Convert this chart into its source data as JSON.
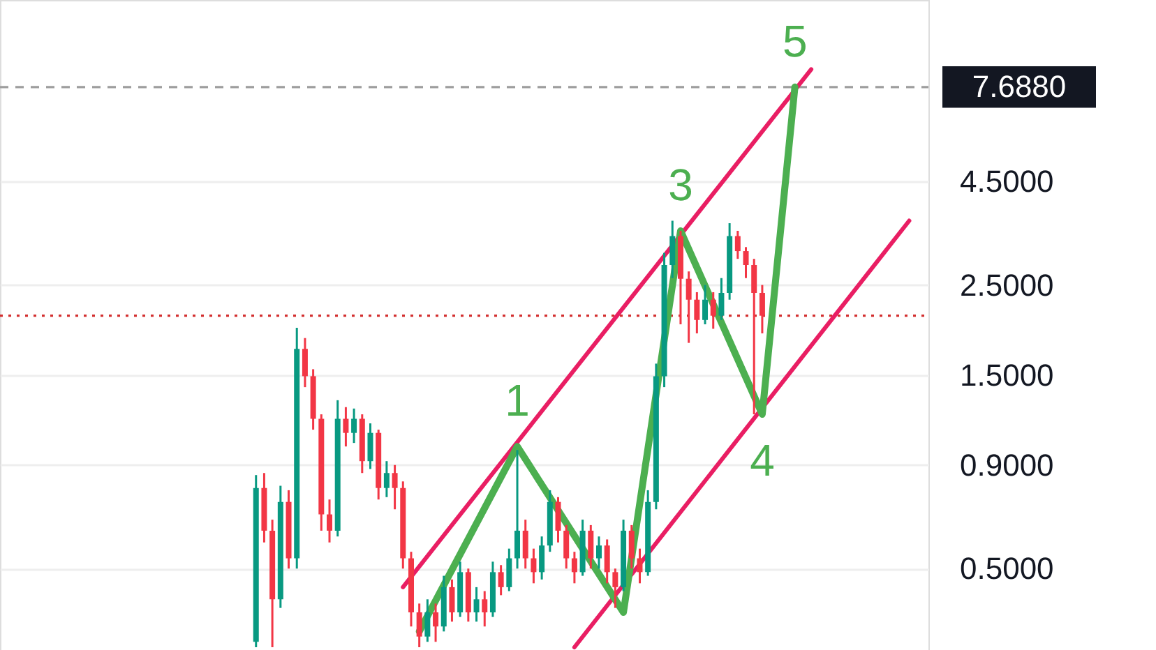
{
  "chart_data": {
    "type": "candlestick",
    "categories": [
      null,
      null,
      null,
      null,
      null,
      null,
      null,
      null,
      null,
      null,
      null,
      null,
      null,
      null,
      null,
      null,
      null,
      null,
      null,
      null,
      null,
      null,
      null,
      null,
      null,
      null,
      null,
      null,
      null,
      null,
      null,
      null,
      null,
      null,
      null,
      null,
      null,
      null,
      null,
      null,
      null,
      null,
      null,
      null,
      null,
      null,
      null,
      null,
      null,
      null,
      null,
      null,
      null,
      null,
      null,
      null,
      null,
      null,
      null,
      null,
      null,
      null,
      null,
      null,
      null,
      null,
      null,
      null,
      null,
      null,
      null,
      null,
      null,
      null,
      null,
      null,
      null,
      null,
      null,
      null,
      null,
      null,
      null,
      null,
      null,
      null,
      null,
      null,
      null,
      null,
      null,
      null,
      null,
      null,
      null,
      null,
      null,
      null,
      null,
      null,
      null,
      null,
      null,
      null,
      null,
      null,
      null,
      null,
      null,
      null,
      null,
      null
    ],
    "ohlc": [
      null,
      null,
      null,
      null,
      null,
      null,
      null,
      null,
      null,
      null,
      null,
      null,
      null,
      null,
      null,
      null,
      null,
      null,
      null,
      null,
      null,
      null,
      null,
      null,
      null,
      null,
      null,
      null,
      null,
      null,
      [
        0.33,
        0.85,
        0.32,
        0.79
      ],
      [
        0.79,
        0.86,
        0.58,
        0.62
      ],
      [
        0.62,
        0.66,
        0.32,
        0.42
      ],
      [
        0.42,
        0.8,
        0.4,
        0.73
      ],
      [
        0.73,
        0.78,
        0.5,
        0.53
      ],
      [
        0.53,
        1.96,
        0.5,
        1.74
      ],
      [
        1.74,
        1.85,
        1.4,
        1.49
      ],
      [
        1.49,
        1.55,
        1.1,
        1.17
      ],
      [
        1.17,
        1.2,
        0.62,
        0.68
      ],
      [
        0.68,
        0.74,
        0.58,
        0.62
      ],
      [
        0.62,
        1.3,
        0.6,
        1.17
      ],
      [
        1.17,
        1.25,
        1.0,
        1.08
      ],
      [
        1.08,
        1.24,
        1.02,
        1.17
      ],
      [
        1.17,
        1.2,
        0.86,
        0.92
      ],
      [
        0.92,
        1.14,
        0.88,
        1.08
      ],
      [
        1.08,
        1.1,
        0.74,
        0.79
      ],
      [
        0.79,
        0.92,
        0.75,
        0.86
      ],
      [
        0.86,
        0.9,
        0.7,
        0.79
      ],
      [
        0.79,
        0.82,
        0.5,
        0.53
      ],
      [
        0.53,
        0.55,
        0.36,
        0.39
      ],
      [
        0.39,
        0.41,
        0.32,
        0.34
      ],
      [
        0.34,
        0.42,
        0.33,
        0.39
      ],
      [
        0.39,
        0.41,
        0.33,
        0.36
      ],
      [
        0.36,
        0.48,
        0.35,
        0.45
      ],
      [
        0.45,
        0.47,
        0.37,
        0.39
      ],
      [
        0.39,
        0.52,
        0.38,
        0.49
      ],
      [
        0.49,
        0.5,
        0.37,
        0.39
      ],
      [
        0.39,
        0.45,
        0.37,
        0.42
      ],
      [
        0.42,
        0.44,
        0.36,
        0.39
      ],
      [
        0.39,
        0.52,
        0.38,
        0.49
      ],
      [
        0.49,
        0.51,
        0.43,
        0.45
      ],
      [
        0.45,
        0.56,
        0.44,
        0.53
      ],
      [
        0.53,
        0.98,
        0.5,
        0.62
      ],
      [
        0.62,
        0.66,
        0.5,
        0.53
      ],
      [
        0.53,
        0.56,
        0.46,
        0.49
      ],
      [
        0.49,
        0.6,
        0.47,
        0.57
      ],
      [
        0.57,
        0.78,
        0.55,
        0.73
      ],
      [
        0.73,
        0.75,
        0.58,
        0.62
      ],
      [
        0.62,
        0.64,
        0.5,
        0.53
      ],
      [
        0.53,
        0.55,
        0.46,
        0.49
      ],
      [
        0.49,
        0.66,
        0.48,
        0.62
      ],
      [
        0.62,
        0.64,
        0.5,
        0.53
      ],
      [
        0.53,
        0.6,
        0.5,
        0.57
      ],
      [
        0.57,
        0.59,
        0.46,
        0.49
      ],
      [
        0.49,
        0.5,
        0.4,
        0.45
      ],
      [
        0.45,
        0.66,
        0.44,
        0.62
      ],
      [
        0.62,
        0.64,
        0.5,
        0.53
      ],
      [
        0.53,
        0.56,
        0.46,
        0.49
      ],
      [
        0.49,
        0.78,
        0.48,
        0.73
      ],
      [
        0.73,
        1.6,
        0.7,
        1.49
      ],
      [
        1.49,
        3.0,
        1.4,
        2.8
      ],
      [
        2.8,
        3.6,
        2.6,
        3.3
      ],
      [
        3.3,
        3.4,
        2.0,
        2.59
      ],
      [
        2.59,
        2.7,
        1.8,
        2.3
      ],
      [
        2.3,
        2.4,
        1.9,
        2.05
      ],
      [
        2.05,
        2.5,
        2.0,
        2.3
      ],
      [
        2.3,
        2.4,
        1.95,
        2.1
      ],
      [
        2.1,
        2.6,
        2.05,
        2.39
      ],
      [
        2.39,
        3.55,
        2.3,
        3.3
      ],
      [
        3.3,
        3.4,
        2.9,
        3.03
      ],
      [
        3.03,
        3.1,
        2.6,
        2.8
      ],
      [
        2.8,
        2.9,
        1.2,
        2.39
      ],
      [
        2.39,
        2.5,
        1.9,
        2.1
      ],
      null,
      null,
      null,
      null,
      null,
      null,
      null,
      null,
      null,
      null,
      null,
      null,
      null,
      null,
      null,
      null,
      null,
      null,
      null
    ],
    "colors": [
      null,
      null,
      null,
      null,
      null,
      null,
      null,
      null,
      null,
      null,
      null,
      null,
      null,
      null,
      null,
      null,
      null,
      null,
      null,
      null,
      null,
      null,
      null,
      null,
      null,
      null,
      null,
      null,
      null,
      null,
      "#089981",
      "#f23645",
      "#f23645",
      "#089981",
      "#f23645",
      "#089981",
      "#f23645",
      "#f23645",
      "#f23645",
      "#f23645",
      "#089981",
      "#f23645",
      "#089981",
      "#f23645",
      "#089981",
      "#f23645",
      "#089981",
      "#f23645",
      "#f23645",
      "#f23645",
      "#f23645",
      "#089981",
      "#f23645",
      "#089981",
      "#f23645",
      "#089981",
      "#f23645",
      "#089981",
      "#f23645",
      "#089981",
      "#f23645",
      "#089981",
      "#089981",
      "#f23645",
      "#f23645",
      "#089981",
      "#089981",
      "#f23645",
      "#f23645",
      "#f23645",
      "#089981",
      "#f23645",
      "#089981",
      "#f23645",
      "#f23645",
      "#089981",
      "#f23645",
      "#f23645",
      "#089981",
      "#089981",
      "#089981",
      "#089981",
      "#f23645",
      "#f23645",
      "#f23645",
      "#089981",
      "#f23645",
      "#089981",
      "#089981",
      "#f23645",
      "#f23645",
      "#f23645",
      "#f23645",
      null,
      null,
      null,
      null,
      null,
      null,
      null,
      null,
      null,
      null,
      null,
      null,
      null,
      null,
      null,
      null,
      null,
      null,
      null
    ],
    "series": [
      {
        "type": "line",
        "color": "#e91e63",
        "values": [
          null,
          null,
          null,
          null,
          null,
          null,
          null,
          null,
          null,
          null,
          null,
          null,
          null,
          null,
          null,
          null,
          null,
          null,
          null,
          null,
          null,
          null,
          null,
          null,
          null,
          null,
          null,
          null,
          null,
          null,
          null,
          null,
          null,
          null,
          null,
          null,
          null,
          null,
          null,
          null,
          null,
          null,
          null,
          null,
          null,
          null,
          null,
          null,
          0.45,
          null,
          null,
          null,
          null,
          null,
          null,
          null,
          null,
          null,
          null,
          null,
          null,
          null,
          null,
          null,
          null,
          null,
          null,
          null,
          null,
          null,
          null,
          null,
          null,
          null,
          null,
          null,
          null,
          null,
          null,
          null,
          null,
          null,
          null,
          null,
          null,
          null,
          null,
          null,
          null,
          null,
          null,
          null,
          null,
          null,
          null,
          null,
          null,
          null,
          8.5,
          null,
          null,
          null,
          null,
          null,
          null,
          null,
          null,
          null,
          null,
          null,
          null,
          null
        ]
      },
      {
        "type": "line",
        "color": "#e91e63",
        "values": [
          null,
          null,
          null,
          null,
          null,
          null,
          null,
          null,
          null,
          null,
          null,
          null,
          null,
          null,
          null,
          null,
          null,
          null,
          null,
          null,
          null,
          null,
          null,
          null,
          null,
          null,
          null,
          null,
          null,
          null,
          null,
          null,
          null,
          null,
          null,
          null,
          null,
          null,
          null,
          null,
          null,
          null,
          null,
          null,
          null,
          null,
          null,
          null,
          null,
          null,
          null,
          null,
          null,
          null,
          null,
          null,
          null,
          null,
          null,
          null,
          null,
          null,
          null,
          null,
          null,
          null,
          null,
          null,
          null,
          0.32,
          null,
          null,
          null,
          null,
          null,
          null,
          null,
          null,
          null,
          null,
          null,
          null,
          null,
          null,
          null,
          null,
          null,
          null,
          null,
          null,
          null,
          null,
          null,
          null,
          null,
          null,
          null,
          null,
          null,
          null,
          null,
          null,
          null,
          null,
          null,
          null,
          null,
          null,
          null,
          null,
          3.6,
          null
        ]
      },
      {
        "type": "line",
        "color": "#4caf50",
        "values": [
          null,
          null,
          null,
          null,
          null,
          null,
          null,
          null,
          null,
          null,
          null,
          null,
          null,
          null,
          null,
          null,
          null,
          null,
          null,
          null,
          null,
          null,
          null,
          null,
          null,
          null,
          null,
          null,
          null,
          null,
          null,
          null,
          null,
          null,
          null,
          null,
          null,
          null,
          null,
          null,
          null,
          null,
          null,
          null,
          null,
          null,
          null,
          null,
          null,
          null,
          0.35,
          null,
          null,
          null,
          null,
          null,
          null,
          null,
          null,
          null,
          null,
          null,
          1.0,
          null,
          null,
          null,
          null,
          null,
          null,
          null,
          null,
          null,
          null,
          null,
          null,
          0.39,
          null,
          null,
          null,
          null,
          null,
          null,
          3.4,
          null,
          null,
          null,
          null,
          null,
          null,
          null,
          null,
          null,
          1.2,
          null,
          null,
          null,
          7.688,
          null,
          null,
          null,
          null,
          null,
          null,
          null,
          null,
          null,
          null,
          null,
          null,
          null,
          null,
          null
        ]
      }
    ],
    "annotations": [
      {
        "text": "1",
        "y": 1.0
      },
      {
        "text": "3",
        "y": 3.4
      },
      {
        "text": "4",
        "y": 1.2
      },
      {
        "text": "5",
        "y": 7.688
      }
    ],
    "ref_lines": [
      {
        "axis": "y",
        "value": 7.688,
        "label": "7.6880",
        "color": "#9e9e9e",
        "line_style": "dashed"
      },
      {
        "axis": "y",
        "value": 2.1,
        "color": "#d32f2f",
        "line_style": "dotted"
      }
    ],
    "log": "y",
    "ylim": [
      0.315,
      12.6
    ],
    "yticks": [
      {
        "value": 0.5,
        "label": "0.5000"
      },
      {
        "value": 0.9,
        "label": "0.9000"
      },
      {
        "value": 1.5,
        "label": "1.5000"
      },
      {
        "value": 2.5,
        "label": "2.5000"
      },
      {
        "value": 4.5,
        "label": "4.5000"
      }
    ],
    "grid": "y",
    "tick_labels": "y",
    "marker": "none",
    "line_style": "solid"
  }
}
